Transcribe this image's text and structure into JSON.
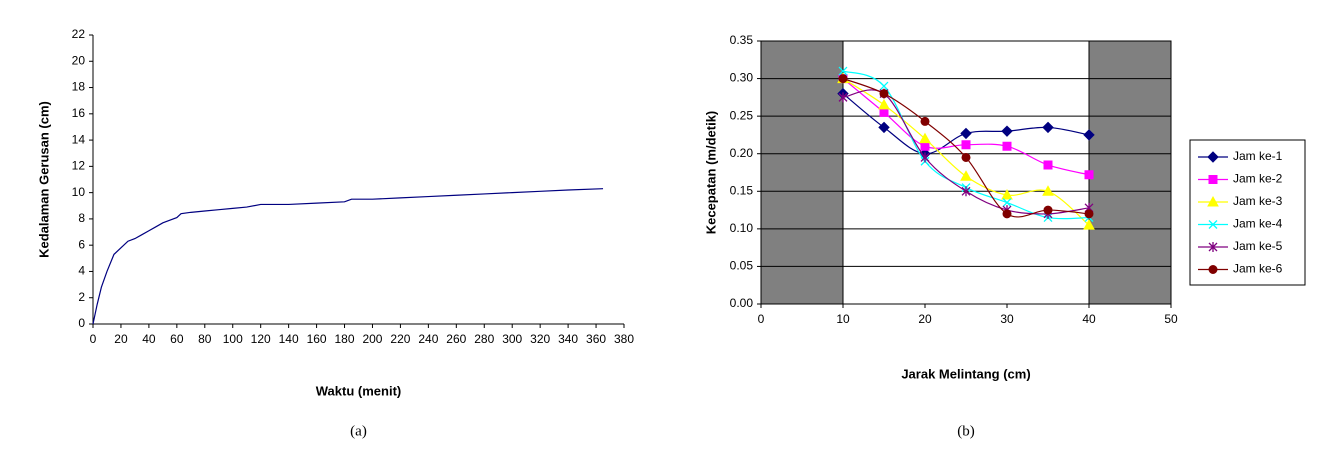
{
  "chart_data": [
    {
      "type": "line",
      "x_label": "Waktu  (menit)",
      "y_label": "Kedalaman Gerusan  (cm)",
      "caption": "(a)",
      "x": [
        0,
        3,
        6,
        10,
        15,
        20,
        25,
        30,
        35,
        40,
        45,
        50,
        55,
        60,
        63,
        70,
        80,
        90,
        100,
        110,
        120,
        140,
        160,
        180,
        185,
        200,
        220,
        240,
        260,
        280,
        300,
        320,
        340,
        365
      ],
      "values": [
        0,
        1.5,
        2.8,
        4,
        5.3,
        5.8,
        6.3,
        6.5,
        6.8,
        7.1,
        7.4,
        7.7,
        7.9,
        8.1,
        8.4,
        8.5,
        8.6,
        8.7,
        8.8,
        8.9,
        9.1,
        9.1,
        9.2,
        9.3,
        9.5,
        9.5,
        9.6,
        9.7,
        9.8,
        9.9,
        10.0,
        10.1,
        10.2,
        10.3
      ],
      "color": "#000080",
      "xlim": [
        0,
        380
      ],
      "xticks": [
        0,
        20,
        40,
        60,
        80,
        100,
        120,
        140,
        160,
        180,
        200,
        220,
        240,
        260,
        280,
        300,
        320,
        340,
        360,
        380
      ],
      "ylim": [
        0,
        22
      ],
      "yticks": [
        0,
        2,
        4,
        6,
        8,
        10,
        12,
        14,
        16,
        18,
        20,
        22
      ],
      "grid": false,
      "smooth": false
    },
    {
      "type": "line",
      "x_label": "Jarak Melintang (cm)",
      "y_label": "Kecepatan  (m/detik)",
      "caption": "(b)",
      "x": [
        10,
        15,
        20,
        25,
        30,
        35,
        40
      ],
      "series": [
        {
          "name": "Jam ke-1",
          "color": "#000080",
          "marker": "diamond",
          "values": [
            0.28,
            0.235,
            0.2,
            0.227,
            0.23,
            0.235,
            0.225
          ]
        },
        {
          "name": "Jam ke-2",
          "color": "#ff00ff",
          "marker": "square",
          "values": [
            0.3,
            0.255,
            0.21,
            0.212,
            0.21,
            0.185,
            0.172
          ]
        },
        {
          "name": "Jam ke-3",
          "color": "#ffff00",
          "marker": "triangle",
          "values": [
            0.3,
            0.265,
            0.22,
            0.17,
            0.145,
            0.15,
            0.105
          ]
        },
        {
          "name": "Jam ke-4",
          "color": "#00ffff",
          "marker": "x",
          "values": [
            0.31,
            0.29,
            0.19,
            0.155,
            0.135,
            0.115,
            0.115
          ]
        },
        {
          "name": "Jam ke-5",
          "color": "#800080",
          "marker": "star",
          "values": [
            0.275,
            0.28,
            0.195,
            0.15,
            0.125,
            0.12,
            0.128
          ]
        },
        {
          "name": "Jam ke-6",
          "color": "#800000",
          "marker": "circle",
          "values": [
            0.3,
            0.28,
            0.243,
            0.195,
            0.12,
            0.125,
            0.12
          ]
        }
      ],
      "xlim": [
        0,
        50
      ],
      "xticks": [
        0,
        10,
        20,
        30,
        40,
        50
      ],
      "ylim": [
        0,
        0.35
      ],
      "yticks": [
        {
          "value": 0,
          "label": "0.00"
        },
        0.05,
        {
          "value": 0.1,
          "label": "0.10"
        },
        0.15,
        {
          "value": 0.2,
          "label": "0.20"
        },
        0.25,
        {
          "value": 0.3,
          "label": "0.30"
        },
        0.35
      ],
      "shaded_regions": [
        [
          0,
          10
        ],
        [
          40,
          50
        ]
      ],
      "shade_color": "#808080",
      "grid": true,
      "plot_border": true,
      "smooth": true,
      "legend": "right"
    }
  ]
}
